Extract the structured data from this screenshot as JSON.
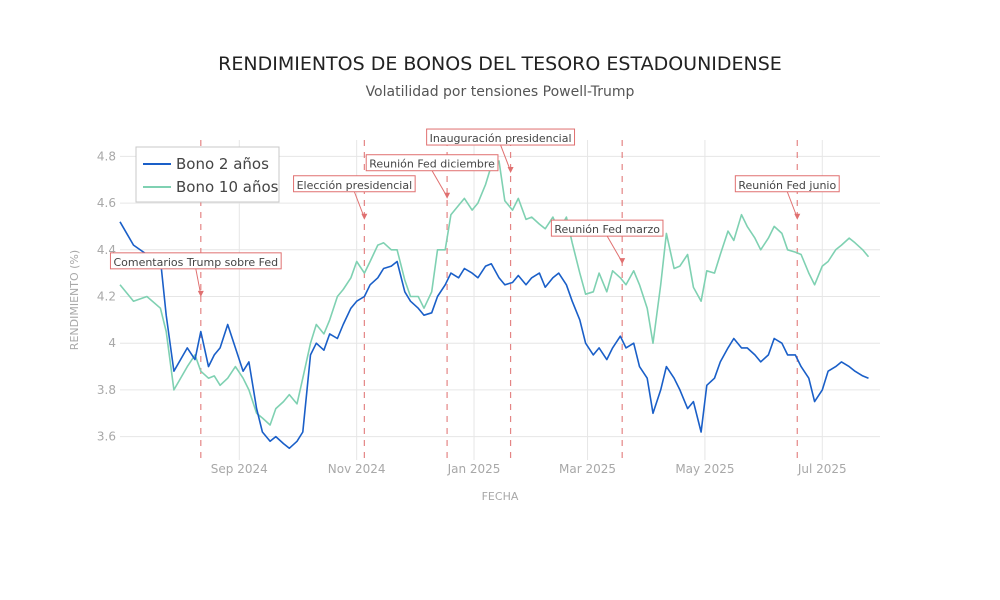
{
  "chart_data": {
    "type": "line",
    "title": "RENDIMIENTOS DE BONOS DEL TESORO ESTADOUNIDENSE",
    "subtitle": "Volatilidad por tensiones Powell-Trump",
    "xlabel": "FECHA",
    "ylabel": "RENDIMIENTO (%)",
    "xlim": [
      "2024-07-01",
      "2025-07-31"
    ],
    "ylim": [
      3.5,
      4.87
    ],
    "x_ticks": [
      {
        "date": "2024-09-01",
        "label": "Sep 2024"
      },
      {
        "date": "2024-11-01",
        "label": "Nov 2024"
      },
      {
        "date": "2025-01-01",
        "label": "Jan 2025"
      },
      {
        "date": "2025-03-01",
        "label": "Mar 2025"
      },
      {
        "date": "2025-05-01",
        "label": "May 2025"
      },
      {
        "date": "2025-07-01",
        "label": "Jul 2025"
      }
    ],
    "y_ticks": [
      3.6,
      3.8,
      4,
      4.2,
      4.4,
      4.6,
      4.8
    ],
    "grid": true,
    "legend": "top-left",
    "series": [
      {
        "name": "Bono 2 años",
        "color": "#1a5fc8",
        "points": [
          [
            "2024-07-01",
            4.52
          ],
          [
            "2024-07-08",
            4.42
          ],
          [
            "2024-07-15",
            4.38
          ],
          [
            "2024-07-22",
            4.36
          ],
          [
            "2024-07-25",
            4.12
          ],
          [
            "2024-07-29",
            3.88
          ],
          [
            "2024-08-05",
            3.98
          ],
          [
            "2024-08-09",
            3.93
          ],
          [
            "2024-08-12",
            4.05
          ],
          [
            "2024-08-16",
            3.9
          ],
          [
            "2024-08-19",
            3.95
          ],
          [
            "2024-08-22",
            3.98
          ],
          [
            "2024-08-26",
            4.08
          ],
          [
            "2024-08-30",
            3.98
          ],
          [
            "2024-09-03",
            3.88
          ],
          [
            "2024-09-06",
            3.92
          ],
          [
            "2024-09-10",
            3.72
          ],
          [
            "2024-09-13",
            3.62
          ],
          [
            "2024-09-17",
            3.58
          ],
          [
            "2024-09-20",
            3.6
          ],
          [
            "2024-09-24",
            3.57
          ],
          [
            "2024-09-27",
            3.55
          ],
          [
            "2024-10-01",
            3.58
          ],
          [
            "2024-10-04",
            3.62
          ],
          [
            "2024-10-08",
            3.95
          ],
          [
            "2024-10-11",
            4.0
          ],
          [
            "2024-10-15",
            3.97
          ],
          [
            "2024-10-18",
            4.04
          ],
          [
            "2024-10-22",
            4.02
          ],
          [
            "2024-10-25",
            4.08
          ],
          [
            "2024-10-29",
            4.15
          ],
          [
            "2024-11-01",
            4.18
          ],
          [
            "2024-11-05",
            4.2
          ],
          [
            "2024-11-08",
            4.25
          ],
          [
            "2024-11-12",
            4.28
          ],
          [
            "2024-11-15",
            4.32
          ],
          [
            "2024-11-19",
            4.33
          ],
          [
            "2024-11-22",
            4.35
          ],
          [
            "2024-11-26",
            4.22
          ],
          [
            "2024-11-29",
            4.18
          ],
          [
            "2024-12-03",
            4.15
          ],
          [
            "2024-12-06",
            4.12
          ],
          [
            "2024-12-10",
            4.13
          ],
          [
            "2024-12-13",
            4.2
          ],
          [
            "2024-12-17",
            4.25
          ],
          [
            "2024-12-20",
            4.3
          ],
          [
            "2024-12-24",
            4.28
          ],
          [
            "2024-12-27",
            4.32
          ],
          [
            "2024-12-31",
            4.3
          ],
          [
            "2025-01-03",
            4.28
          ],
          [
            "2025-01-07",
            4.33
          ],
          [
            "2025-01-10",
            4.34
          ],
          [
            "2025-01-14",
            4.28
          ],
          [
            "2025-01-17",
            4.25
          ],
          [
            "2025-01-21",
            4.26
          ],
          [
            "2025-01-24",
            4.29
          ],
          [
            "2025-01-28",
            4.25
          ],
          [
            "2025-01-31",
            4.28
          ],
          [
            "2025-02-04",
            4.3
          ],
          [
            "2025-02-07",
            4.24
          ],
          [
            "2025-02-11",
            4.28
          ],
          [
            "2025-02-14",
            4.3
          ],
          [
            "2025-02-18",
            4.25
          ],
          [
            "2025-02-21",
            4.18
          ],
          [
            "2025-02-25",
            4.1
          ],
          [
            "2025-02-28",
            4.0
          ],
          [
            "2025-03-04",
            3.95
          ],
          [
            "2025-03-07",
            3.98
          ],
          [
            "2025-03-11",
            3.93
          ],
          [
            "2025-03-14",
            3.98
          ],
          [
            "2025-03-18",
            4.03
          ],
          [
            "2025-03-21",
            3.98
          ],
          [
            "2025-03-25",
            4.0
          ],
          [
            "2025-03-28",
            3.9
          ],
          [
            "2025-04-01",
            3.85
          ],
          [
            "2025-04-04",
            3.7
          ],
          [
            "2025-04-08",
            3.8
          ],
          [
            "2025-04-11",
            3.9
          ],
          [
            "2025-04-15",
            3.85
          ],
          [
            "2025-04-18",
            3.8
          ],
          [
            "2025-04-22",
            3.72
          ],
          [
            "2025-04-25",
            3.75
          ],
          [
            "2025-04-29",
            3.62
          ],
          [
            "2025-05-02",
            3.82
          ],
          [
            "2025-05-06",
            3.85
          ],
          [
            "2025-05-09",
            3.92
          ],
          [
            "2025-05-13",
            3.98
          ],
          [
            "2025-05-16",
            4.02
          ],
          [
            "2025-05-20",
            3.98
          ],
          [
            "2025-05-23",
            3.98
          ],
          [
            "2025-05-27",
            3.95
          ],
          [
            "2025-05-30",
            3.92
          ],
          [
            "2025-06-03",
            3.95
          ],
          [
            "2025-06-06",
            4.02
          ],
          [
            "2025-06-10",
            4.0
          ],
          [
            "2025-06-13",
            3.95
          ],
          [
            "2025-06-17",
            3.95
          ],
          [
            "2025-06-20",
            3.9
          ],
          [
            "2025-06-24",
            3.85
          ],
          [
            "2025-06-27",
            3.75
          ],
          [
            "2025-07-01",
            3.8
          ],
          [
            "2025-07-04",
            3.88
          ],
          [
            "2025-07-08",
            3.9
          ],
          [
            "2025-07-11",
            3.92
          ],
          [
            "2025-07-15",
            3.9
          ],
          [
            "2025-07-18",
            3.88
          ],
          [
            "2025-07-22",
            3.86
          ],
          [
            "2025-07-25",
            3.85
          ]
        ]
      },
      {
        "name": "Bono 10 años",
        "color": "#7fd1b2",
        "points": [
          [
            "2024-07-01",
            4.25
          ],
          [
            "2024-07-08",
            4.18
          ],
          [
            "2024-07-15",
            4.2
          ],
          [
            "2024-07-22",
            4.15
          ],
          [
            "2024-07-25",
            4.05
          ],
          [
            "2024-07-29",
            3.8
          ],
          [
            "2024-08-05",
            3.9
          ],
          [
            "2024-08-09",
            3.95
          ],
          [
            "2024-08-12",
            3.88
          ],
          [
            "2024-08-16",
            3.85
          ],
          [
            "2024-08-19",
            3.86
          ],
          [
            "2024-08-22",
            3.82
          ],
          [
            "2024-08-26",
            3.85
          ],
          [
            "2024-08-30",
            3.9
          ],
          [
            "2024-09-03",
            3.85
          ],
          [
            "2024-09-06",
            3.8
          ],
          [
            "2024-09-10",
            3.7
          ],
          [
            "2024-09-13",
            3.68
          ],
          [
            "2024-09-17",
            3.65
          ],
          [
            "2024-09-20",
            3.72
          ],
          [
            "2024-09-24",
            3.75
          ],
          [
            "2024-09-27",
            3.78
          ],
          [
            "2024-10-01",
            3.74
          ],
          [
            "2024-10-04",
            3.85
          ],
          [
            "2024-10-08",
            4.0
          ],
          [
            "2024-10-11",
            4.08
          ],
          [
            "2024-10-15",
            4.04
          ],
          [
            "2024-10-18",
            4.1
          ],
          [
            "2024-10-22",
            4.2
          ],
          [
            "2024-10-25",
            4.23
          ],
          [
            "2024-10-29",
            4.28
          ],
          [
            "2024-11-01",
            4.35
          ],
          [
            "2024-11-05",
            4.3
          ],
          [
            "2024-11-08",
            4.35
          ],
          [
            "2024-11-12",
            4.42
          ],
          [
            "2024-11-15",
            4.43
          ],
          [
            "2024-11-19",
            4.4
          ],
          [
            "2024-11-22",
            4.4
          ],
          [
            "2024-11-26",
            4.27
          ],
          [
            "2024-11-29",
            4.2
          ],
          [
            "2024-12-03",
            4.2
          ],
          [
            "2024-12-06",
            4.15
          ],
          [
            "2024-12-10",
            4.22
          ],
          [
            "2024-12-13",
            4.4
          ],
          [
            "2024-12-17",
            4.4
          ],
          [
            "2024-12-20",
            4.55
          ],
          [
            "2024-12-24",
            4.59
          ],
          [
            "2024-12-27",
            4.62
          ],
          [
            "2024-12-31",
            4.57
          ],
          [
            "2025-01-03",
            4.6
          ],
          [
            "2025-01-07",
            4.68
          ],
          [
            "2025-01-10",
            4.76
          ],
          [
            "2025-01-14",
            4.78
          ],
          [
            "2025-01-17",
            4.61
          ],
          [
            "2025-01-21",
            4.57
          ],
          [
            "2025-01-24",
            4.62
          ],
          [
            "2025-01-28",
            4.53
          ],
          [
            "2025-01-31",
            4.54
          ],
          [
            "2025-02-04",
            4.51
          ],
          [
            "2025-02-07",
            4.49
          ],
          [
            "2025-02-11",
            4.54
          ],
          [
            "2025-02-14",
            4.48
          ],
          [
            "2025-02-18",
            4.54
          ],
          [
            "2025-02-21",
            4.43
          ],
          [
            "2025-02-25",
            4.3
          ],
          [
            "2025-02-28",
            4.21
          ],
          [
            "2025-03-04",
            4.22
          ],
          [
            "2025-03-07",
            4.3
          ],
          [
            "2025-03-11",
            4.22
          ],
          [
            "2025-03-14",
            4.31
          ],
          [
            "2025-03-18",
            4.28
          ],
          [
            "2025-03-21",
            4.25
          ],
          [
            "2025-03-25",
            4.31
          ],
          [
            "2025-03-28",
            4.25
          ],
          [
            "2025-04-01",
            4.15
          ],
          [
            "2025-04-04",
            4.0
          ],
          [
            "2025-04-08",
            4.25
          ],
          [
            "2025-04-11",
            4.47
          ],
          [
            "2025-04-15",
            4.32
          ],
          [
            "2025-04-18",
            4.33
          ],
          [
            "2025-04-22",
            4.38
          ],
          [
            "2025-04-25",
            4.24
          ],
          [
            "2025-04-29",
            4.18
          ],
          [
            "2025-05-02",
            4.31
          ],
          [
            "2025-05-06",
            4.3
          ],
          [
            "2025-05-09",
            4.38
          ],
          [
            "2025-05-13",
            4.48
          ],
          [
            "2025-05-16",
            4.44
          ],
          [
            "2025-05-20",
            4.55
          ],
          [
            "2025-05-23",
            4.5
          ],
          [
            "2025-05-27",
            4.45
          ],
          [
            "2025-05-30",
            4.4
          ],
          [
            "2025-06-03",
            4.45
          ],
          [
            "2025-06-06",
            4.5
          ],
          [
            "2025-06-10",
            4.47
          ],
          [
            "2025-06-13",
            4.4
          ],
          [
            "2025-06-17",
            4.39
          ],
          [
            "2025-06-20",
            4.38
          ],
          [
            "2025-06-24",
            4.3
          ],
          [
            "2025-06-27",
            4.25
          ],
          [
            "2025-07-01",
            4.33
          ],
          [
            "2025-07-04",
            4.35
          ],
          [
            "2025-07-08",
            4.4
          ],
          [
            "2025-07-11",
            4.42
          ],
          [
            "2025-07-15",
            4.45
          ],
          [
            "2025-07-18",
            4.43
          ],
          [
            "2025-07-22",
            4.4
          ],
          [
            "2025-07-25",
            4.37
          ]
        ]
      }
    ],
    "annotations": [
      {
        "date": "2024-08-12",
        "y": 4.19,
        "text": "Comentarios Trump sobre Fed"
      },
      {
        "date": "2024-11-05",
        "y": 4.52,
        "text": "Elección presidencial"
      },
      {
        "date": "2024-12-18",
        "y": 4.61,
        "text": "Reunión Fed diciembre"
      },
      {
        "date": "2025-01-20",
        "y": 4.72,
        "text": "Inauguración presidencial"
      },
      {
        "date": "2025-03-19",
        "y": 4.33,
        "text": "Reunión Fed marzo"
      },
      {
        "date": "2025-06-18",
        "y": 4.52,
        "text": "Reunión Fed junio"
      }
    ],
    "annotation_color": "#e07070"
  }
}
